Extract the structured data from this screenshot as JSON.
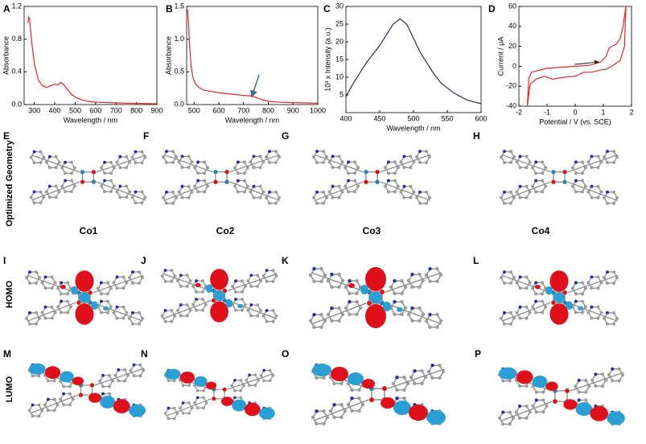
{
  "chart_data": [
    {
      "type": "line",
      "panel": "A",
      "xlabel": "Wavelength / nm",
      "ylabel": "Absorbance",
      "color": "#e8262a",
      "x": [
        268,
        272,
        276,
        282,
        290,
        300,
        320,
        340,
        360,
        380,
        400,
        415,
        430,
        445,
        460,
        480,
        500,
        530,
        560,
        600,
        650,
        700,
        800,
        900
      ],
      "values": [
        1.0,
        1.07,
        1.05,
        0.9,
        0.7,
        0.5,
        0.3,
        0.23,
        0.21,
        0.23,
        0.25,
        0.24,
        0.27,
        0.24,
        0.19,
        0.13,
        0.09,
        0.06,
        0.04,
        0.03,
        0.025,
        0.02,
        0.015,
        0.01
      ],
      "xlim": [
        250,
        900
      ],
      "xticks": [
        300,
        400,
        500,
        600,
        700,
        800,
        900
      ],
      "ylim": [
        0,
        1.2
      ],
      "yticks": [
        {
          "value": 0,
          "label": "0.0"
        },
        0.4,
        0.8,
        1.2
      ]
    },
    {
      "type": "line",
      "panel": "B",
      "xlabel": "Wavelength / nm",
      "ylabel": "Absorbance",
      "color": "#e8262a",
      "x": [
        474,
        478,
        482,
        488,
        495,
        505,
        520,
        540,
        570,
        600,
        650,
        700,
        730,
        750,
        770,
        800,
        850,
        900,
        950,
        1000
      ],
      "values": [
        1.45,
        1.2,
        0.9,
        0.6,
        0.42,
        0.32,
        0.26,
        0.22,
        0.2,
        0.18,
        0.16,
        0.14,
        0.13,
        0.11,
        0.08,
        0.05,
        0.035,
        0.03,
        0.025,
        0.02
      ],
      "xlim": [
        470,
        1000
      ],
      "xticks": [
        500,
        600,
        700,
        800,
        900,
        1000
      ],
      "ylim": [
        0,
        1.5
      ],
      "yticks": [
        {
          "value": 0,
          "label": "0.0"
        },
        0.5,
        {
          "value": 1,
          "label": "1.0"
        },
        1.5
      ]
    },
    {
      "type": "line",
      "panel": "C",
      "xlabel": "Wavelength / nm",
      "ylabel": "10³ x Intensity (a.u.)",
      "color": "#2b2b5c",
      "x": [
        400,
        410,
        420,
        430,
        440,
        450,
        460,
        470,
        480,
        490,
        500,
        510,
        520,
        530,
        540,
        550,
        560,
        570,
        580,
        590,
        600
      ],
      "values": [
        4.5,
        8,
        11,
        14,
        16.5,
        19,
        22,
        25,
        26.5,
        25,
        21,
        17,
        14,
        11,
        8.5,
        7,
        5.5,
        4.5,
        3.5,
        3,
        2.5
      ],
      "xlim": [
        400,
        600
      ],
      "xticks": [
        400,
        450,
        500,
        550,
        600
      ],
      "ylim": [
        0,
        30
      ],
      "yticks": [
        5,
        10,
        15,
        20,
        25,
        30
      ]
    },
    {
      "type": "line",
      "panel": "D",
      "xlabel": "Potential / V (vs. SCE)",
      "ylabel": "Current / μA",
      "color": "#e8262a",
      "x": [
        -1.7,
        -1.65,
        -1.55,
        -1.3,
        -1,
        -0.5,
        0,
        0.5,
        0.9,
        1.1,
        1.2,
        1.3,
        1.45,
        1.6,
        1.7,
        1.8,
        1.75,
        1.6,
        1.3,
        1.1,
        1.0,
        0.6,
        0.3,
        0,
        -0.4,
        -0.8,
        -1.1,
        -1.4,
        -1.6,
        -1.7
      ],
      "values": [
        -40,
        -12,
        -6,
        -4,
        -2,
        -1,
        0,
        1,
        4,
        10,
        18,
        20,
        22,
        28,
        40,
        60,
        20,
        6,
        0,
        -3,
        -3,
        -6,
        -6,
        -10,
        -11,
        -13,
        -10,
        -13,
        -18,
        -40
      ],
      "xlim": [
        -2,
        2
      ],
      "xticks": [
        -2,
        -1,
        0,
        1,
        2
      ],
      "ylim": [
        -40,
        60
      ],
      "yticks": [
        -40,
        -20,
        0,
        20,
        40,
        60
      ]
    }
  ],
  "panels": [
    "E",
    "F",
    "G",
    "H",
    "I",
    "J",
    "K",
    "L",
    "M",
    "N",
    "O",
    "P"
  ],
  "row_labels": [
    "Optimized Geometry",
    "HOMO",
    "LUMO"
  ],
  "molecules": [
    "Co1",
    "Co2",
    "Co3",
    "Co4"
  ]
}
